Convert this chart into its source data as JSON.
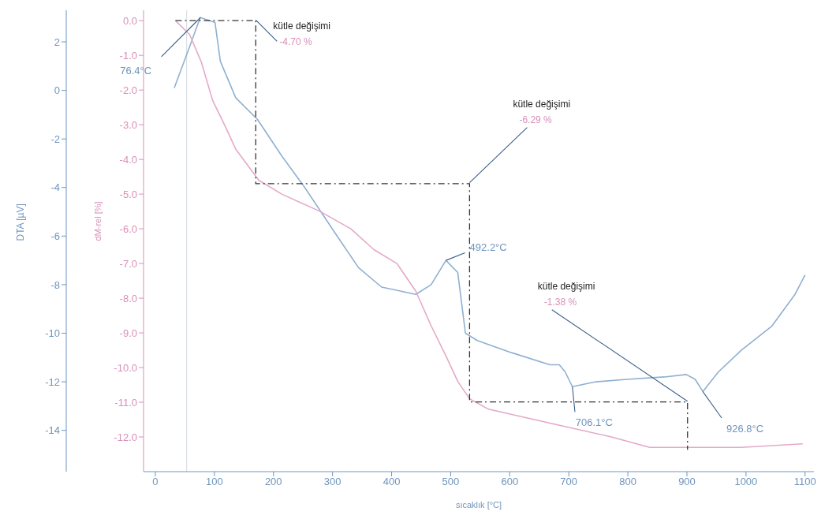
{
  "chart_data": {
    "type": "line",
    "xlabel": "sıcaklık [°C]",
    "ylabel": "DTA  [µV]",
    "y2label": "dM-rel [%]",
    "xlim": [
      -20,
      1115
    ],
    "xticks": [
      0,
      100,
      200,
      300,
      400,
      500,
      600,
      700,
      800,
      900,
      1000,
      1100
    ],
    "ylim": [
      -15.7,
      3.3
    ],
    "yticks": [
      2,
      0,
      -2,
      -4,
      -6,
      -8,
      -10,
      -12,
      -14
    ],
    "y2lim": [
      -13.0,
      0.3
    ],
    "y2ticks": [
      {
        "value": 0,
        "label": "0.0"
      },
      {
        "value": -1,
        "label": "-1.0"
      },
      {
        "value": -2,
        "label": "-2.0"
      },
      {
        "value": -3,
        "label": "-3.0"
      },
      {
        "value": -4,
        "label": "-4.0"
      },
      {
        "value": -5,
        "label": "-5.0"
      },
      {
        "value": -6,
        "label": "-6.0"
      },
      {
        "value": -7,
        "label": "-7.0"
      },
      {
        "value": -8,
        "label": "-8.0"
      },
      {
        "value": -9,
        "label": "-9.0"
      },
      {
        "value": -10,
        "label": "-10.0"
      },
      {
        "value": -11,
        "label": "-11.0"
      },
      {
        "value": -12,
        "label": "-12.0"
      }
    ],
    "series": [
      {
        "type": "line",
        "axis": "y",
        "color": "#8fb0d0",
        "x": [
          32,
          58,
          76,
          101,
          110,
          136,
          173,
          214,
          253,
          305,
          344,
          383,
          422,
          441,
          467,
          492,
          512,
          525,
          545,
          603,
          668,
          684,
          694,
          706,
          746,
          798,
          862,
          899,
          914,
          927,
          953,
          992,
          1044,
          1083,
          1100
        ],
        "values": [
          0.1,
          1.8,
          3.0,
          2.8,
          1.2,
          -0.3,
          -1.2,
          -2.7,
          -4.0,
          -5.9,
          -7.3,
          -8.1,
          -8.3,
          -8.4,
          -8.0,
          -7.0,
          -7.5,
          -10.0,
          -10.3,
          -10.8,
          -11.3,
          -11.3,
          -11.6,
          -12.2,
          -12.0,
          -11.9,
          -11.8,
          -11.7,
          -11.9,
          -12.4,
          -11.6,
          -10.7,
          -9.7,
          -8.4,
          -7.6
        ]
      },
      {
        "type": "line",
        "axis": "y2",
        "color": "#e3a9c9",
        "x": [
          34,
          58,
          78,
          97,
          117,
          136,
          175,
          214,
          279,
          331,
          370,
          409,
          441,
          467,
          493,
          512,
          532,
          564,
          668,
          772,
          837,
          901,
          992,
          1096
        ],
        "values": [
          0.0,
          -0.4,
          -1.2,
          -2.3,
          -3.0,
          -3.7,
          -4.6,
          -5.0,
          -5.5,
          -6.0,
          -6.6,
          -7.0,
          -7.8,
          -8.8,
          -9.7,
          -10.4,
          -10.9,
          -11.2,
          -11.6,
          -12.0,
          -12.3,
          -12.3,
          -12.3,
          -12.2
        ]
      },
      {
        "type": "step",
        "axis": "y2",
        "color": "#333333",
        "line_style": "dashed",
        "x": [
          34,
          170,
          532,
          901
        ],
        "values": [
          0.0,
          -4.7,
          -10.99,
          -12.37
        ]
      }
    ],
    "ref_lines": [
      {
        "axis": "x",
        "value": 53,
        "color": "#d4d8e0"
      }
    ],
    "annotations": [
      {
        "text": "76.4°C",
        "x": 76.4,
        "y": 3.0
      },
      {
        "text": "492.2°C",
        "x": 492.2,
        "y": -7.0
      },
      {
        "text": "706.1°C",
        "x": 706.1,
        "y": -12.2
      },
      {
        "text": "926.8°C",
        "x": 926.8,
        "y": -12.4
      },
      {
        "text": "-4.70 %",
        "x": 170,
        "y": 2.9
      },
      "kütle değişimi",
      {
        "text": "-6.29 %",
        "x": 532,
        "y": -3.8
      },
      "kütle değişimi",
      {
        "text": "-1.38 %",
        "x": 901,
        "y": -12.8
      },
      "kütle değişimi"
    ]
  }
}
